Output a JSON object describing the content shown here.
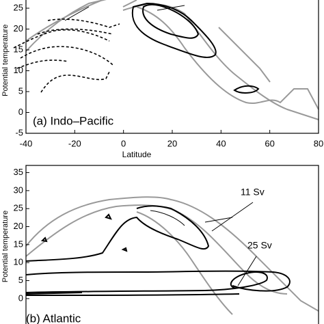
{
  "chart_data": [
    {
      "type": "contour",
      "panel_label": "(a) Indo–Pacific",
      "xlabel": "Latitude",
      "ylabel": "Potential temperature",
      "xlim": [
        -40,
        80
      ],
      "xticks": [
        -40,
        -20,
        0,
        20,
        40,
        60,
        80
      ],
      "ylim": [
        -5,
        30
      ],
      "yticks": [
        -5,
        0,
        5,
        10,
        15,
        20,
        25
      ]
    },
    {
      "type": "contour",
      "panel_label": "(b) Atlantic",
      "ylabel": "Potential temperature",
      "xlim": [
        -40,
        80
      ],
      "ylim": [
        -8,
        37
      ],
      "yticks": [
        0,
        5,
        10,
        15,
        20,
        25,
        30,
        35
      ],
      "annotations": [
        "11 Sv",
        "25 Sv"
      ]
    }
  ]
}
